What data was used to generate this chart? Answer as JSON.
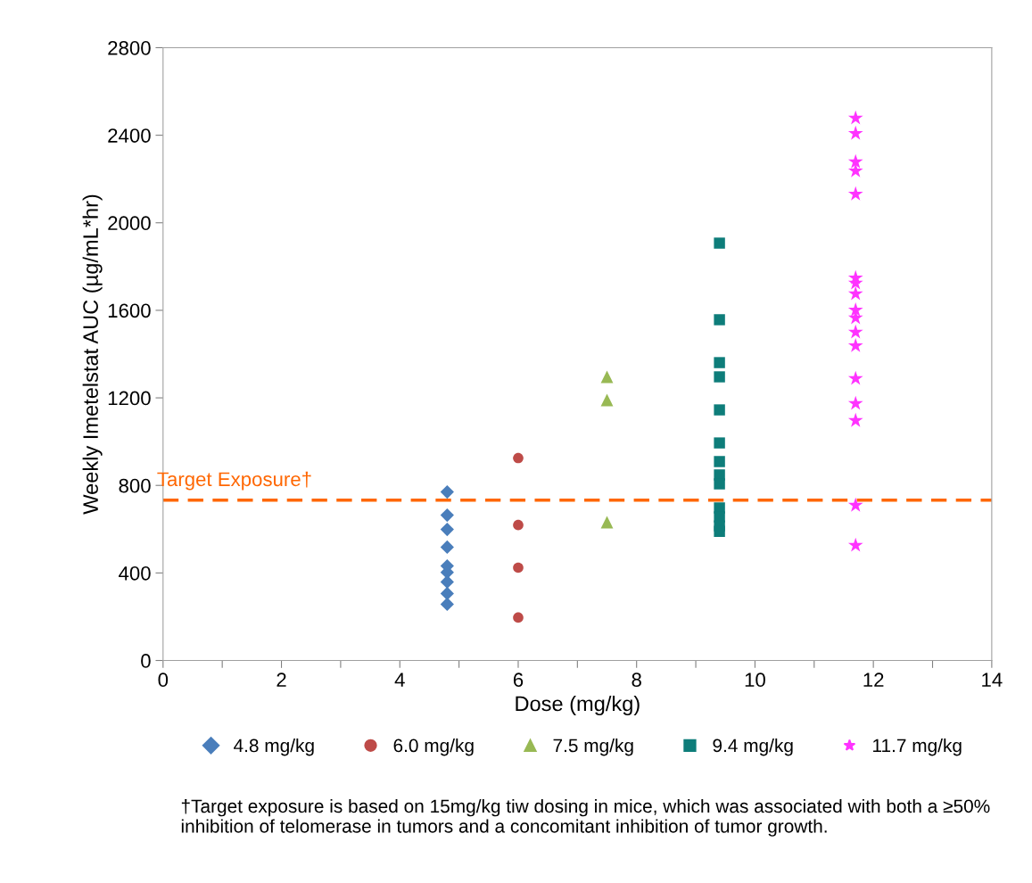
{
  "chart_data": {
    "type": "scatter",
    "xlabel": "Dose (mg/kg)",
    "ylabel": "Weekly Imetelstat AUC (µg/mL*hr)",
    "xlim": [
      0,
      14
    ],
    "ylim": [
      0,
      2800
    ],
    "xticks": [
      0,
      {
        "value": 1,
        "label": null
      },
      2,
      {
        "value": 3,
        "label": null
      },
      4,
      {
        "value": 5,
        "label": null
      },
      6,
      {
        "value": 7,
        "label": null
      },
      8,
      {
        "value": 9,
        "label": null
      },
      10,
      {
        "value": 11,
        "label": null
      },
      12,
      {
        "value": 13,
        "label": null
      },
      14
    ],
    "yticks": [
      0,
      400,
      800,
      1200,
      1600,
      2000,
      2400,
      2800
    ],
    "grid": false,
    "legend": "bottom",
    "ref_lines": [
      {
        "axis": "y",
        "value": 733,
        "label": "Target Exposure†",
        "color": "#ff6600",
        "line_style": "dashed"
      }
    ],
    "annotations": [
      "†Target exposure is based on 15mg/kg tiw dosing in mice, which was associated with both a ≥50% inhibition of telomerase in tumors and a concomitant inhibition of tumor growth."
    ],
    "series": [
      {
        "name": "4.8 mg/kg",
        "color": "#4a7ebb",
        "marker": "diamond",
        "x": [
          4.8,
          4.8,
          4.8,
          4.8,
          4.8,
          4.8,
          4.8,
          4.8,
          4.8
        ],
        "values": [
          770,
          664,
          599,
          518,
          432,
          403,
          359,
          306,
          257
        ]
      },
      {
        "name": "6.0 mg/kg",
        "color": "#be4b48",
        "marker": "circle",
        "x": [
          6.0,
          6.0,
          6.0,
          6.0
        ],
        "values": [
          925,
          619,
          424,
          196
        ]
      },
      {
        "name": "7.5 mg/kg",
        "color": "#98b954",
        "marker": "triangle",
        "x": [
          7.5,
          7.5,
          7.5
        ],
        "values": [
          1296,
          1190,
          632
        ]
      },
      {
        "name": "9.4 mg/kg",
        "color": "#0e7d7a",
        "marker": "square",
        "x": [
          9.4,
          9.4,
          9.4,
          9.4,
          9.4,
          9.4,
          9.4,
          9.4,
          9.4,
          9.4,
          9.4,
          9.4,
          9.4
        ],
        "values": [
          1907,
          1557,
          1361,
          1296,
          1145,
          994,
          909,
          848,
          807,
          697,
          656,
          615,
          590
        ]
      },
      {
        "name": "11.7 mg/kg",
        "color": "#ff33ff",
        "marker": "star",
        "x": [
          11.7,
          11.7,
          11.7,
          11.7,
          11.7,
          11.7,
          11.7,
          11.7,
          11.7,
          11.7,
          11.7,
          11.7,
          11.7,
          11.7,
          11.7,
          11.7,
          11.7
        ],
        "values": [
          2478,
          2408,
          2278,
          2237,
          2131,
          1748,
          1724,
          1675,
          1601,
          1565,
          1500,
          1438,
          1288,
          1174,
          1096,
          709,
          526
        ]
      }
    ]
  }
}
